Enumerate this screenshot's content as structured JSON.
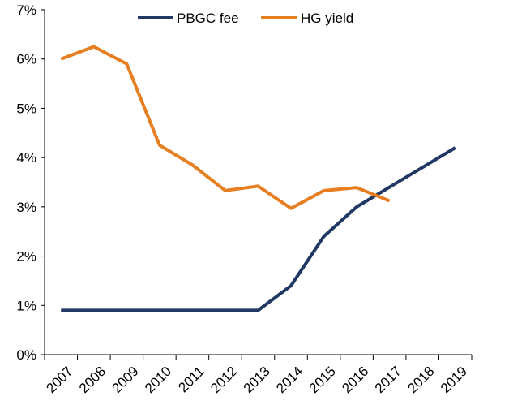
{
  "chart_data": {
    "type": "line",
    "title": "",
    "xlabel": "",
    "ylabel": "",
    "x_tick_labels": [
      "2007",
      "2008",
      "2009",
      "2010",
      "2011",
      "2012",
      "2013",
      "2014",
      "2015",
      "2016",
      "2017",
      "2018",
      "2019"
    ],
    "y_tick_labels": [
      "0%",
      "1%",
      "2%",
      "3%",
      "4%",
      "5%",
      "6%",
      "7%"
    ],
    "ylim": [
      0,
      7
    ],
    "grid": false,
    "legend_placement": "top-center",
    "series": [
      {
        "name": "PBGC fee",
        "color": "#1f3864",
        "x": [
          "2007",
          "2008",
          "2009",
          "2010",
          "2011",
          "2012",
          "2013",
          "2014",
          "2015",
          "2016",
          "2017",
          "2018",
          "2019"
        ],
        "values": [
          0.9,
          0.9,
          0.9,
          0.9,
          0.9,
          0.9,
          0.9,
          1.4,
          2.4,
          3.0,
          3.4,
          3.8,
          4.2
        ]
      },
      {
        "name": "HG yield",
        "color": "#e67e22",
        "x": [
          "2007",
          "2008",
          "2009",
          "2010",
          "2011",
          "2012",
          "2013",
          "2014",
          "2015",
          "2016",
          "2017"
        ],
        "values": [
          6.0,
          6.25,
          5.9,
          4.25,
          3.85,
          3.33,
          3.42,
          2.97,
          3.33,
          3.39,
          3.12
        ]
      }
    ]
  }
}
